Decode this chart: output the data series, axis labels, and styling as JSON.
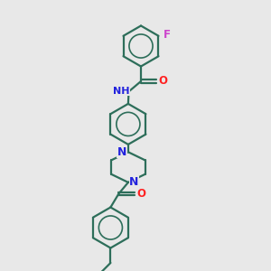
{
  "background_color": "#e8e8e8",
  "bond_color": "#2d6e5a",
  "N_color": "#2222dd",
  "O_color": "#ff2222",
  "F_color": "#cc44cc",
  "line_width": 1.6,
  "figsize": [
    3.0,
    3.0
  ],
  "dpi": 100,
  "xlim": [
    0,
    10
  ],
  "ylim": [
    0,
    10
  ]
}
